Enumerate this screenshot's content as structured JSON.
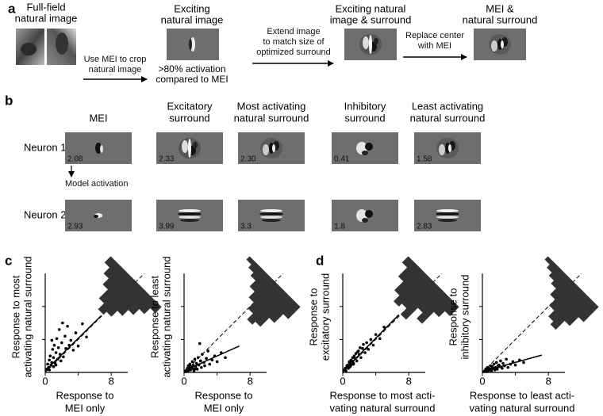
{
  "panel_a": {
    "letter": "a",
    "items": [
      {
        "label": [
          "Full-field",
          "natural image"
        ]
      },
      {
        "label": [
          "Exciting",
          "natural image"
        ],
        "note": [
          ">80% activation",
          "compared to MEI"
        ]
      },
      {
        "label": [
          "Exciting natural",
          "image & surround"
        ]
      },
      {
        "label": [
          "MEI &",
          "natural surround"
        ]
      }
    ],
    "arrows": [
      [
        "Use MEI to crop",
        "natural image"
      ],
      [
        "Extend image",
        "to match size of",
        "optimized surround"
      ],
      [
        "Replace center",
        "with MEI"
      ]
    ]
  },
  "panel_b": {
    "letter": "b",
    "columns": [
      [
        "MEI"
      ],
      [
        "Excitatory",
        "surround"
      ],
      [
        "Most activating",
        "natural surround"
      ],
      [
        "Inhibitory",
        "surround"
      ],
      [
        "Least activating",
        "natural surround"
      ]
    ],
    "rows": [
      {
        "label": "Neuron 1",
        "values": [
          "2.08",
          "2.33",
          "2.30",
          "0.41",
          "1.58"
        ]
      },
      {
        "label": "Neuron 2",
        "values": [
          "2.93",
          "3.99",
          "3.3",
          "1.8",
          "2.83"
        ]
      }
    ],
    "annotation": "Model activation"
  },
  "panel_c": {
    "letter": "c"
  },
  "panel_d": {
    "letter": "d"
  },
  "chart_data": [
    {
      "type": "scatter",
      "ylabel": [
        "Response to most",
        "activating natural surround"
      ],
      "xlabel": [
        "Response to",
        "MEI only"
      ],
      "x": [
        0.2,
        0.3,
        0.4,
        0.5,
        0.5,
        0.6,
        0.7,
        0.8,
        0.9,
        1.0,
        1.0,
        1.1,
        1.2,
        1.3,
        1.4,
        1.5,
        1.6,
        1.7,
        1.8,
        2.0,
        2.1,
        2.2,
        2.4,
        2.5,
        2.7,
        2.9,
        3.1,
        3.4,
        3.7,
        4.0,
        4.5,
        5.0,
        0.8,
        1.3,
        1.9
      ],
      "y": [
        0.4,
        1.0,
        0.6,
        1.5,
        0.3,
        2.0,
        0.9,
        1.2,
        2.8,
        0.7,
        1.8,
        3.3,
        1.1,
        2.4,
        4.1,
        1.6,
        3.0,
        5.2,
        2.2,
        3.6,
        6.0,
        1.9,
        4.4,
        2.9,
        5.6,
        3.3,
        3.9,
        2.7,
        4.8,
        3.2,
        5.9,
        4.3,
        3.9,
        0.9,
        1.4
      ],
      "xlim": [
        0,
        10
      ],
      "ylim": [
        0,
        12
      ],
      "xticks": [
        0,
        8
      ],
      "xticks_minor": [
        4
      ],
      "yticks_minor": [
        4,
        8
      ],
      "diagonal": true,
      "fit": {
        "x": [
          0,
          6.8
        ],
        "y": [
          0.2,
          6.9
        ]
      },
      "hist_counts": [
        2,
        4,
        6,
        9,
        11,
        10,
        8,
        6,
        4,
        2
      ],
      "color": "#000000"
    },
    {
      "type": "scatter",
      "ylabel": [
        "Response to least",
        "activating natural surround"
      ],
      "xlabel": [
        "Response to",
        "MEI only"
      ],
      "x": [
        0.2,
        0.3,
        0.4,
        0.5,
        0.5,
        0.6,
        0.7,
        0.8,
        0.9,
        1.0,
        1.0,
        1.1,
        1.2,
        1.3,
        1.4,
        1.5,
        1.6,
        1.7,
        1.8,
        2.0,
        2.1,
        2.2,
        2.4,
        2.5,
        2.7,
        2.9,
        3.1,
        3.4,
        3.7,
        4.0,
        4.5,
        5.0,
        0.8,
        1.3,
        1.9
      ],
      "y": [
        0.1,
        0.3,
        0.5,
        0.2,
        0.8,
        0.4,
        1.0,
        0.3,
        0.6,
        1.3,
        0.5,
        0.9,
        0.2,
        1.6,
        0.7,
        1.1,
        0.4,
        1.8,
        0.9,
        1.4,
        0.6,
        2.2,
        1.2,
        0.8,
        1.7,
        2.6,
        1.0,
        1.5,
        2.0,
        1.3,
        2.4,
        1.8,
        0.7,
        0.4,
        3.5
      ],
      "xlim": [
        0,
        10
      ],
      "ylim": [
        0,
        12
      ],
      "xticks": [
        0,
        8
      ],
      "xticks_minor": [
        4
      ],
      "yticks_minor": [
        4,
        8
      ],
      "diagonal": true,
      "fit": {
        "x": [
          0,
          6.7
        ],
        "y": [
          0.2,
          3.2
        ]
      },
      "hist_counts": [
        1,
        2,
        3,
        5,
        7,
        9,
        11,
        10,
        7,
        4
      ],
      "color": "#000000"
    },
    {
      "type": "scatter",
      "ylabel": [
        "Response to",
        "excitatory surround"
      ],
      "xlabel": [
        "Response to most acti-",
        "vating natural surround"
      ],
      "x": [
        0.2,
        0.3,
        0.4,
        0.5,
        0.5,
        0.6,
        0.7,
        0.8,
        0.9,
        1.0,
        1.0,
        1.1,
        1.2,
        1.3,
        1.4,
        1.5,
        1.6,
        1.7,
        1.8,
        2.0,
        2.1,
        2.2,
        2.4,
        2.5,
        2.7,
        2.9,
        3.1,
        3.4,
        3.7,
        4.0,
        4.5,
        5.0,
        0.8,
        1.3,
        1.9
      ],
      "y": [
        0.3,
        0.5,
        0.2,
        0.8,
        0.6,
        0.9,
        0.5,
        1.3,
        0.7,
        1.5,
        0.9,
        1.4,
        1.8,
        1.0,
        2.0,
        1.7,
        2.3,
        1.4,
        2.5,
        2.2,
        3.0,
        1.8,
        2.9,
        3.4,
        2.4,
        3.6,
        2.8,
        4.0,
        3.3,
        4.6,
        4.1,
        5.5,
        1.2,
        1.1,
        2.6
      ],
      "xlim": [
        0,
        10
      ],
      "ylim": [
        0,
        12
      ],
      "xticks": [
        0,
        8
      ],
      "xticks_minor": [
        4
      ],
      "yticks_minor": [
        4,
        8
      ],
      "diagonal": true,
      "fit": {
        "x": [
          0,
          6.8
        ],
        "y": [
          0.1,
          7.0
        ]
      },
      "hist_counts": [
        2,
        5,
        8,
        10,
        9,
        11,
        7,
        9,
        5,
        3
      ],
      "color": "#000000"
    },
    {
      "type": "scatter",
      "ylabel": [
        "Response to",
        "inhibitory surround"
      ],
      "xlabel": [
        "Response to least acti-",
        "vating natural surround"
      ],
      "x": [
        0.2,
        0.3,
        0.4,
        0.5,
        0.5,
        0.6,
        0.7,
        0.8,
        0.9,
        1.0,
        1.0,
        1.1,
        1.2,
        1.3,
        1.4,
        1.5,
        1.6,
        1.7,
        1.8,
        2.0,
        2.1,
        2.2,
        2.4,
        2.5,
        2.7,
        2.9,
        3.1,
        3.4,
        3.7,
        4.0,
        4.5,
        5.0,
        0.8,
        1.3,
        1.9
      ],
      "y": [
        0.1,
        0.2,
        0.4,
        0.1,
        0.3,
        0.6,
        0.2,
        0.5,
        0.3,
        0.8,
        0.4,
        0.2,
        0.7,
        0.5,
        1.0,
        0.3,
        0.6,
        1.2,
        0.4,
        0.9,
        0.7,
        1.4,
        0.5,
        1.1,
        0.8,
        1.6,
        0.6,
        1.0,
        1.3,
        0.9,
        1.5,
        1.2,
        0.3,
        0.5,
        0.8
      ],
      "xlim": [
        0,
        10
      ],
      "ylim": [
        0,
        12
      ],
      "xticks": [
        0,
        8
      ],
      "xticks_minor": [
        4
      ],
      "yticks_minor": [
        4,
        8
      ],
      "diagonal": true,
      "fit": {
        "x": [
          0,
          7.2
        ],
        "y": [
          0.1,
          2.1
        ]
      },
      "hist_counts": [
        1,
        2,
        3,
        4,
        6,
        8,
        10,
        11,
        8,
        5
      ],
      "color": "#000000"
    }
  ]
}
